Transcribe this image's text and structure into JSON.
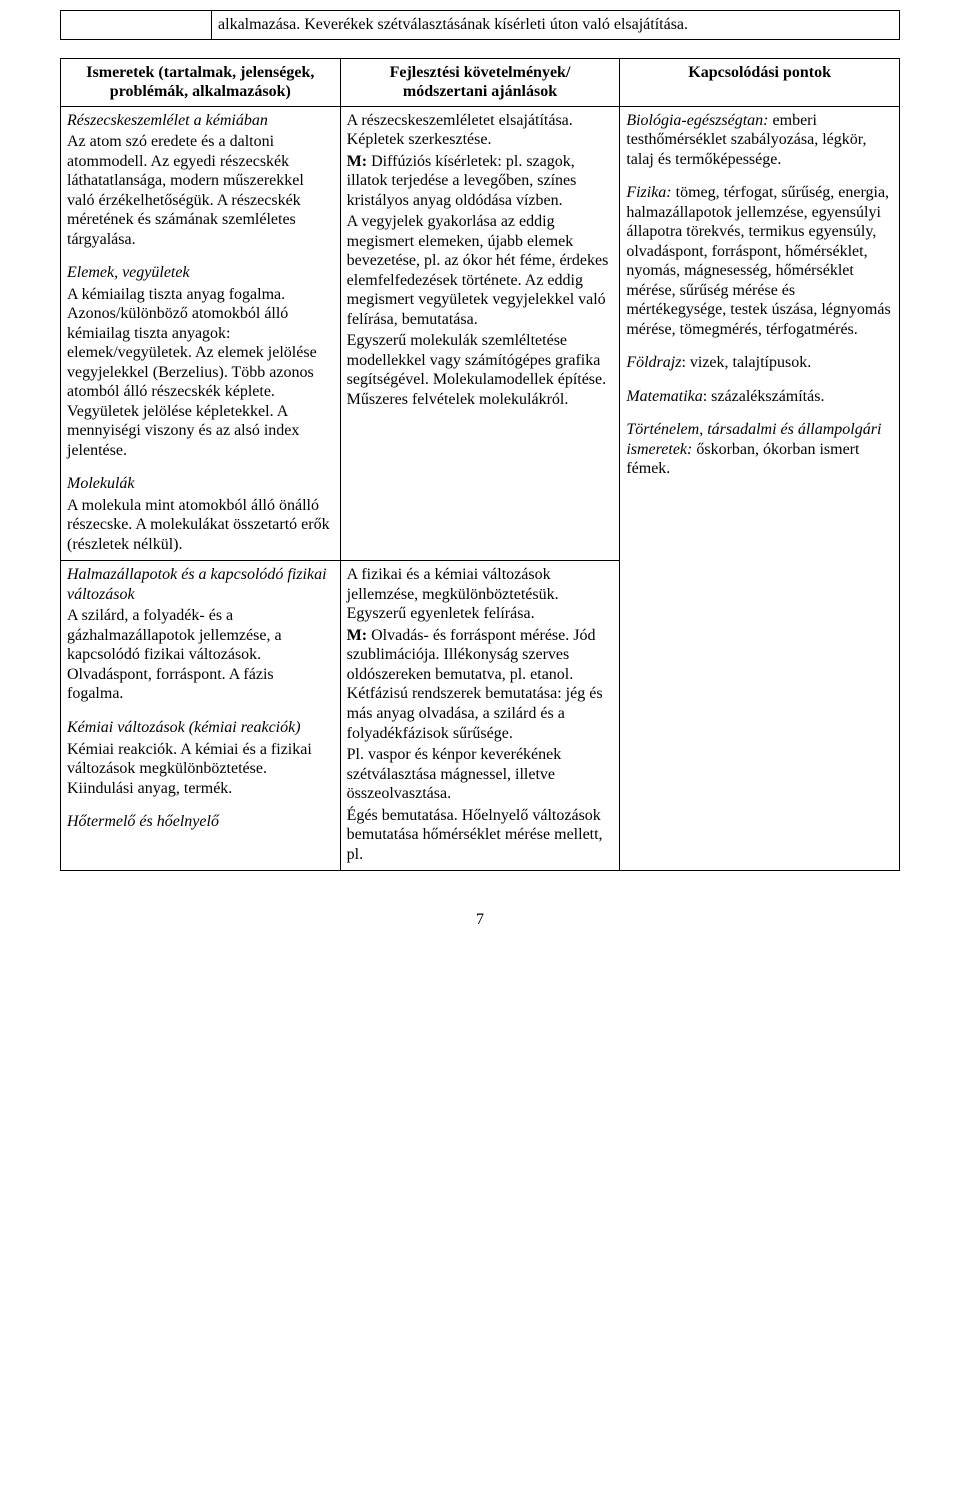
{
  "topTable": {
    "text": "alkalmazása. Keverékek szétválasztásának kísérleti úton való elsajátítása."
  },
  "mainTable": {
    "headers": {
      "c1": "Ismeretek (tartalmak, jelenségek, problémák, alkalmazások)",
      "c2": "Fejlesztési követelmények/ módszertani ajánlások",
      "c3": "Kapcsolódási pontok"
    },
    "c1": {
      "p1_title": "Részecskeszemlélet a kémiában",
      "p1_body": "Az atom szó eredete és a daltoni atommodell. Az egyedi részecskék láthatatlansága, modern műszerekkel való érzékelhetőségük. A részecskék méretének és számának szemléletes tárgyalása.",
      "p2_title": "Elemek, vegyületek",
      "p2_body": "A kémiailag tiszta anyag fogalma. Azonos/különböző atomokból álló kémiailag tiszta anyagok: elemek/vegyületek. Az elemek jelölése vegyjelekkel (Berzelius). Több azonos atomból álló részecskék képlete. Vegyületek jelölése képletekkel. A mennyiségi viszony és az alsó index jelentése.",
      "p3_title": "Molekulák",
      "p3_body": "A molekula mint atomokból álló önálló részecske. A molekulákat összetartó erők (részletek nélkül).",
      "p4_title": "Halmazállapotok és a kapcsolódó fizikai változások",
      "p4_body": "A szilárd, a folyadék- és a gázhalmazállapotok jellemzése, a kapcsolódó fizikai változások. Olvadáspont, forráspont. A fázis fogalma.",
      "p5_title": "Kémiai változások (kémiai reakciók)",
      "p5_body": "Kémiai reakciók. A kémiai és a fizikai változások megkülönböztetése. Kiindulási anyag, termék.",
      "p6_title": "Hőtermelő és hőelnyelő"
    },
    "c2": {
      "p1a": "A részecskeszemléletet elsajátítása. Képletek szerkesztése.",
      "p1b_label": "M:",
      "p1b": " Diffúziós kísérletek: pl. szagok, illatok terjedése a levegőben, színes kristályos anyag oldódása vízben.",
      "p1c": "A vegyjelek gyakorlása az eddig megismert elemeken, újabb elemek bevezetése, pl. az ókor hét féme, érdekes elemfelfedezések története. Az eddig megismert vegyületek vegyjelekkel való felírása, bemutatása.",
      "p1d": "Egyszerű molekulák szemléltetése modellekkel vagy számítógépes grafika segítségével. Molekulamodellek építése. Műszeres felvételek molekulákról.",
      "p2a": "A fizikai és a kémiai változások jellemzése, megkülönböztetésük. Egyszerű egyenletek felírása.",
      "p2b_label": "M:",
      "p2b": " Olvadás- és forráspont mérése. Jód szublimációja. Illékonyság szerves oldószereken bemutatva, pl. etanol. Kétfázisú rendszerek bemutatása: jég és más anyag olvadása, a szilárd és a folyadékfázisok sűrűsége.",
      "p2c": "Pl. vaspor és kénpor keverékének szétválasztása mágnessel, illetve összeolvasztása.",
      "p2d": "Égés bemutatása. Hőelnyelő változások bemutatása hőmérséklet mérése mellett, pl."
    },
    "c3": {
      "p1_label": "Biológia-egészségtan:",
      "p1_body": " emberi testhőmérséklet szabályozása, légkör, talaj és termőképessége.",
      "p2_label": "Fizika:",
      "p2_body": " tömeg, térfogat, sűrűség, energia, halmazállapotok jellemzése, egyensúlyi állapotra törekvés, termikus egyensúly, olvadáspont, forráspont, hőmérséklet, nyomás, mágnesesség, hőmérséklet mérése, sűrűség mérése és mértékegysége, testek úszása, légnyomás mérése, tömegmérés, térfogatmérés.",
      "p3_label": "Földrajz",
      "p3_body": ": vizek, talajtípusok.",
      "p4_label": "Matematika",
      "p4_body": ": százalékszámítás.",
      "p5_label": "Történelem, társadalmi és állampolgári ismeretek:",
      "p5_body": " őskorban, ókorban ismert fémek."
    }
  },
  "pageNumber": "7"
}
